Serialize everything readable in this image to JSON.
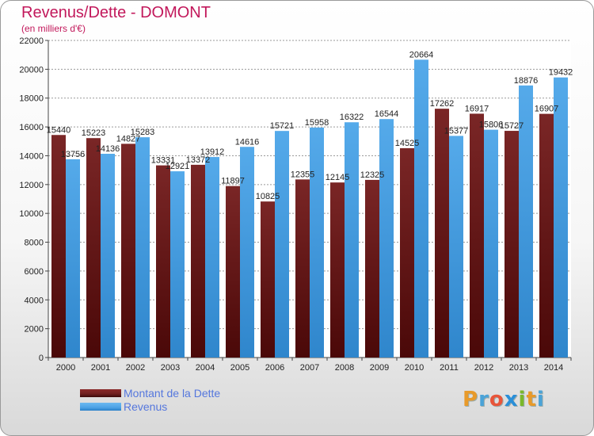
{
  "title": "Revenus/Dette - DOMONT",
  "subtitle": "(en milliers d'€)",
  "logo": {
    "text": "Proxiti",
    "colors": [
      "#e89a2a",
      "#4aa3d8",
      "#e8553a",
      "#2a8fd8",
      "#7ab82a",
      "#e89a2a",
      "#4aa3d8"
    ]
  },
  "colors": {
    "debt": "#6e1f1f",
    "revenue": "#4da3e6",
    "title": "#c2185b"
  },
  "chart_data": {
    "type": "bar",
    "title": "Revenus/Dette - DOMONT",
    "subtitle": "(en milliers d'€)",
    "categories": [
      "2000",
      "2001",
      "2002",
      "2003",
      "2004",
      "2005",
      "2006",
      "2007",
      "2008",
      "2009",
      "2010",
      "2011",
      "2012",
      "2013",
      "2014"
    ],
    "series": [
      {
        "name": "Montant de la Dette",
        "values": [
          15440,
          15223,
          14827,
          13331,
          13372,
          11897,
          10825,
          12355,
          12145,
          12325,
          14525,
          17262,
          16917,
          15727,
          16907
        ],
        "labels": [
          "15440",
          "15223",
          "14827",
          "13331",
          "13372",
          "11897",
          "10825",
          "12355",
          "12145",
          "12325",
          "14525",
          "17262",
          "16917",
          "15727",
          "16907"
        ]
      },
      {
        "name": "Revenus",
        "values": [
          13756,
          14136,
          15283,
          12921,
          13912,
          14616,
          15721,
          15958,
          16322,
          16544,
          20664,
          15377,
          15806,
          18876,
          19432
        ],
        "labels": [
          "13756",
          "14136",
          "15283",
          "12921",
          "13912",
          "14616",
          "15721",
          "15958",
          "16322",
          "16544",
          "20664",
          "15377",
          "15806",
          "18876",
          "19432"
        ]
      }
    ],
    "ylim": [
      0,
      22000
    ],
    "yticks": [
      0,
      2000,
      4000,
      6000,
      8000,
      10000,
      12000,
      14000,
      16000,
      18000,
      20000,
      22000
    ],
    "grid": true,
    "legend_position": "bottom-left"
  }
}
